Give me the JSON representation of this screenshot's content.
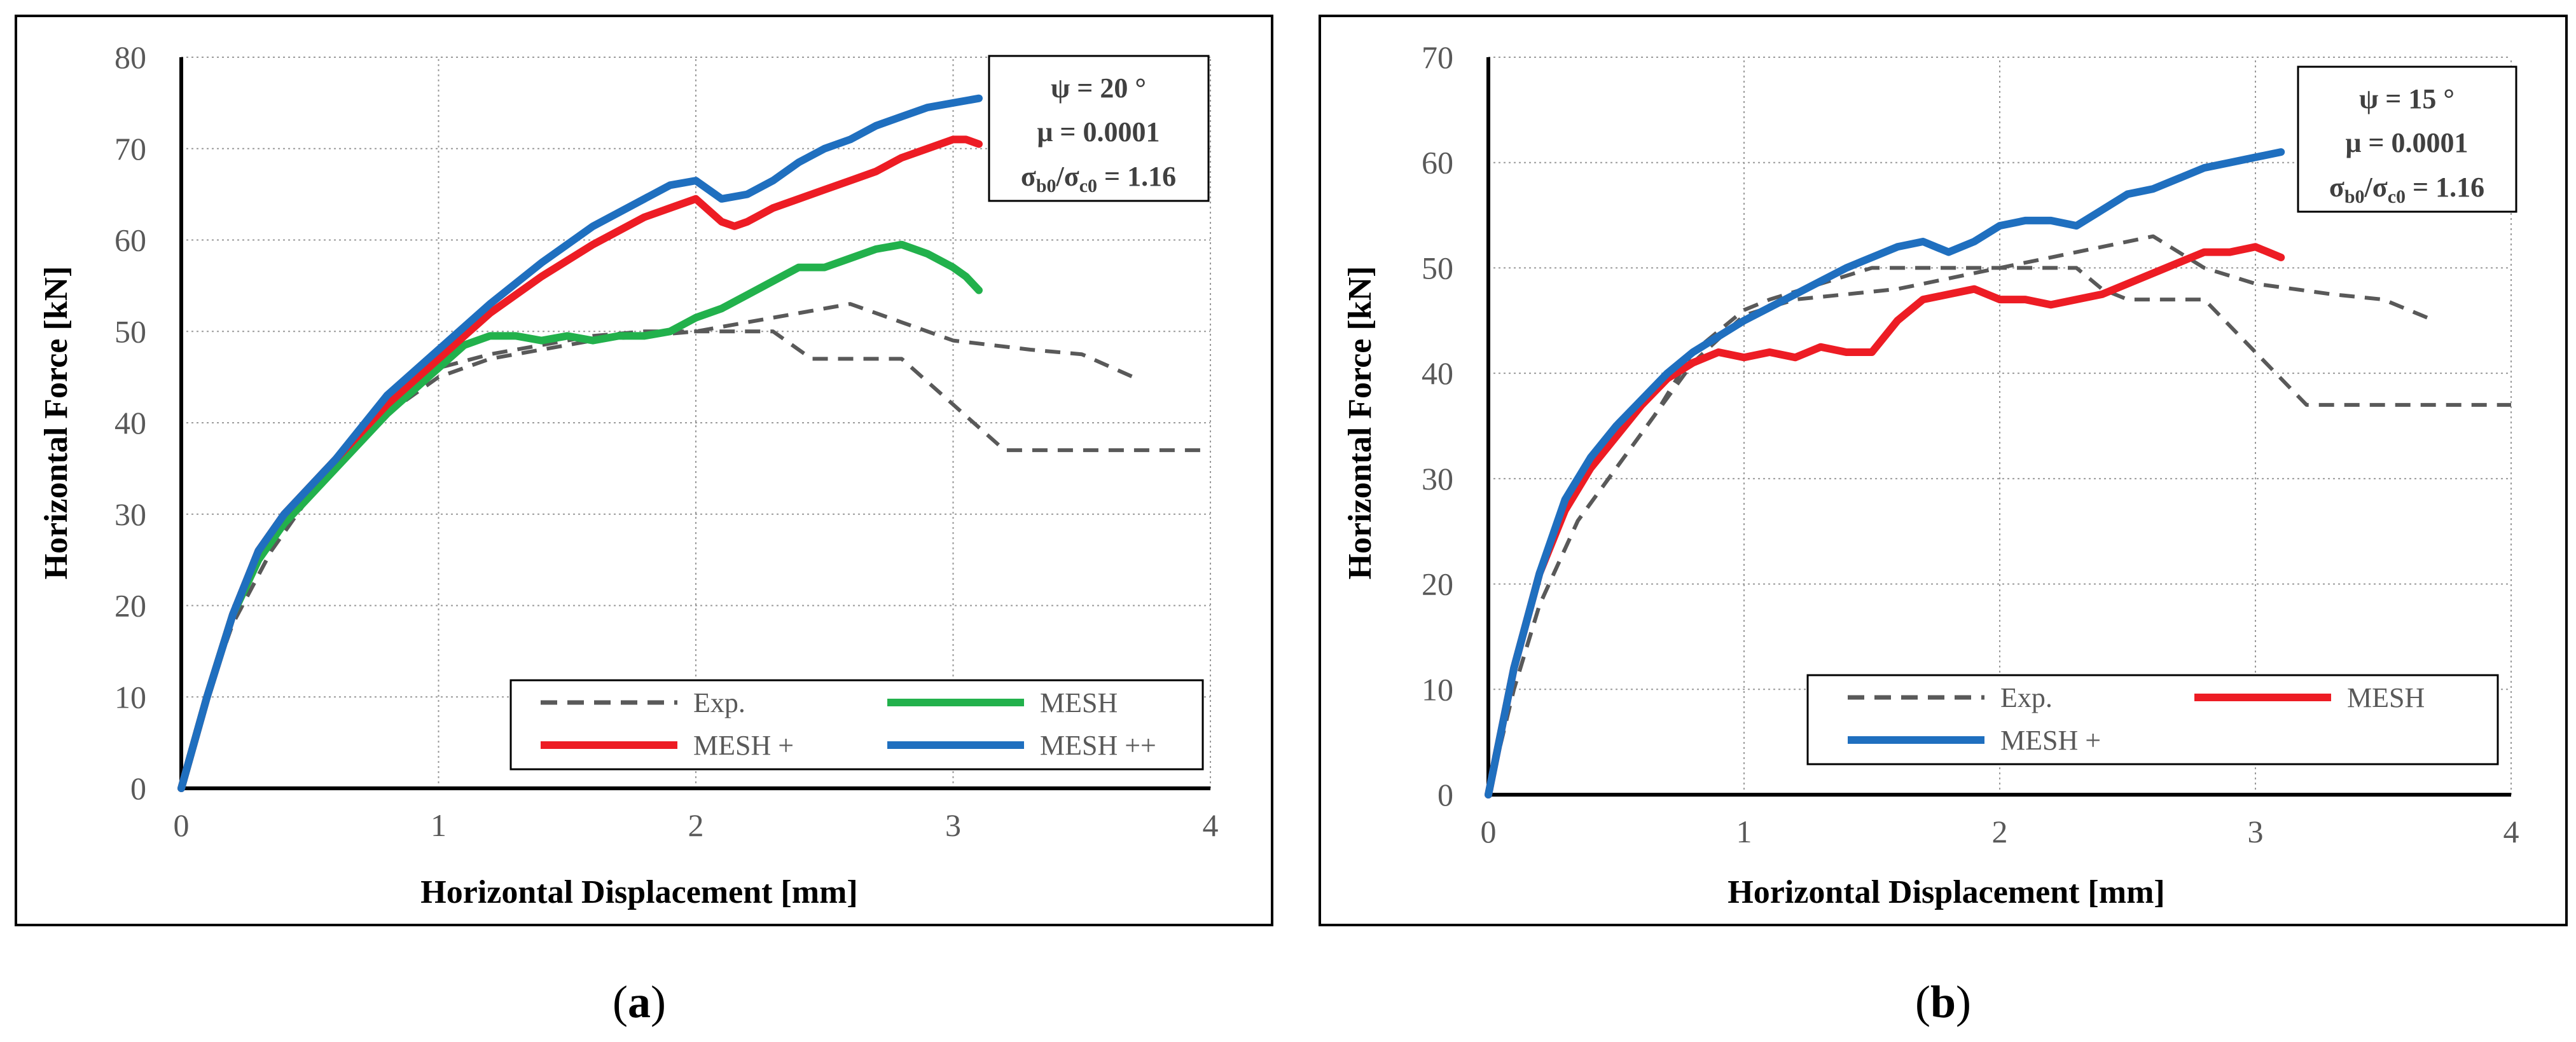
{
  "chart_data": [
    {
      "type": "line",
      "panel_label": "a",
      "xlabel": "Horizontal Displacement [mm]",
      "ylabel": "Horizontal Force [kN]",
      "xlim": [
        0,
        4
      ],
      "ylim": [
        0,
        80
      ],
      "xticks": [
        0,
        1,
        2,
        3,
        4
      ],
      "yticks": [
        0,
        10,
        20,
        30,
        40,
        50,
        60,
        70,
        80
      ],
      "grid": true,
      "annotation": {
        "psi": "ψ = 20 °",
        "mu": "μ = 0.0001",
        "sigma_num": "σ",
        "sigma_num_sub": "b0",
        "sigma_sep": "/σ",
        "sigma_den_sub": "c0",
        "sigma_val": " = 1.16"
      },
      "legend_position": "bottom-right",
      "series": [
        {
          "name": "Exp.",
          "color": "#595959",
          "style": "dashed",
          "x": [
            0,
            0.1,
            0.2,
            0.35,
            0.5,
            0.65,
            0.8,
            1.0,
            1.2,
            1.4,
            1.6,
            1.8,
            2.0,
            2.2,
            2.4,
            2.6,
            2.8,
            3.0,
            3.3,
            3.5,
            3.7
          ],
          "y": [
            0,
            10,
            18,
            26,
            32,
            37,
            41,
            45,
            47,
            48,
            49,
            49.5,
            50,
            51,
            52,
            53,
            51,
            49,
            48,
            47.5,
            45
          ]
        },
        {
          "name": "Exp.",
          "color": "#595959",
          "style": "dashed",
          "legend": false,
          "x": [
            0,
            0.1,
            0.2,
            0.35,
            0.5,
            0.65,
            0.8,
            1.0,
            1.2,
            1.4,
            1.6,
            1.8,
            2.0,
            2.2,
            2.3,
            2.45,
            2.6,
            2.8,
            3.0,
            3.2,
            4.0
          ],
          "y": [
            0,
            10,
            18,
            26,
            32,
            37,
            41,
            46,
            47.5,
            48.5,
            49.5,
            50,
            50,
            50,
            50,
            47,
            47,
            47,
            42,
            37,
            37
          ]
        },
        {
          "name": "MESH",
          "color": "#22B14C",
          "style": "solid",
          "x": [
            0,
            0.1,
            0.2,
            0.3,
            0.4,
            0.5,
            0.6,
            0.8,
            1.0,
            1.1,
            1.2,
            1.3,
            1.4,
            1.5,
            1.6,
            1.7,
            1.8,
            1.9,
            2.0,
            2.1,
            2.2,
            2.3,
            2.4,
            2.5,
            2.6,
            2.7,
            2.8,
            2.85,
            2.9,
            3.0,
            3.05,
            3.1
          ],
          "y": [
            0,
            10,
            19,
            25,
            29,
            32,
            35,
            41,
            46,
            48.5,
            49.5,
            49.5,
            49,
            49.5,
            49,
            49.5,
            49.5,
            50,
            51.5,
            52.5,
            54,
            55.5,
            57,
            57,
            58,
            59,
            59.5,
            59,
            58.5,
            57,
            56,
            54.5
          ]
        },
        {
          "name": "MESH +",
          "color": "#ED1C24",
          "style": "solid",
          "x": [
            0,
            0.1,
            0.2,
            0.3,
            0.4,
            0.5,
            0.6,
            0.8,
            1.0,
            1.2,
            1.4,
            1.6,
            1.8,
            1.9,
            2.0,
            2.1,
            2.15,
            2.2,
            2.3,
            2.4,
            2.5,
            2.6,
            2.7,
            2.8,
            2.9,
            3.0,
            3.05,
            3.1
          ],
          "y": [
            0,
            10,
            19,
            26,
            30,
            33,
            36,
            42,
            47,
            52,
            56,
            59.5,
            62.5,
            63.5,
            64.5,
            62,
            61.5,
            62,
            63.5,
            64.5,
            65.5,
            66.5,
            67.5,
            69,
            70,
            71,
            71,
            70.5
          ]
        },
        {
          "name": "MESH ++",
          "color": "#1F6FBF",
          "style": "solid",
          "x": [
            0,
            0.1,
            0.2,
            0.3,
            0.4,
            0.5,
            0.6,
            0.8,
            1.0,
            1.2,
            1.4,
            1.6,
            1.8,
            1.9,
            2.0,
            2.1,
            2.2,
            2.3,
            2.4,
            2.5,
            2.6,
            2.7,
            2.8,
            2.9,
            3.0,
            3.1
          ],
          "y": [
            0,
            10,
            19,
            26,
            30,
            33,
            36,
            43,
            48,
            53,
            57.5,
            61.5,
            64.5,
            66,
            66.5,
            64.5,
            65,
            66.5,
            68.5,
            70,
            71,
            72.5,
            73.5,
            74.5,
            75,
            75.5
          ]
        }
      ]
    },
    {
      "type": "line",
      "panel_label": "b",
      "xlabel": "Horizontal Displacement [mm]",
      "ylabel": "Horizontal Force [kN]",
      "xlim": [
        0,
        4
      ],
      "ylim": [
        0,
        70
      ],
      "xticks": [
        0,
        1,
        2,
        3,
        4
      ],
      "yticks": [
        0,
        10,
        20,
        30,
        40,
        50,
        60,
        70
      ],
      "grid": true,
      "annotation": {
        "psi": "ψ = 15 °",
        "mu": "μ = 0.0001",
        "sigma_num": "σ",
        "sigma_num_sub": "b0",
        "sigma_sep": "/σ",
        "sigma_den_sub": "c0",
        "sigma_val": " = 1.16"
      },
      "legend_position": "bottom-right",
      "series": [
        {
          "name": "Exp.",
          "color": "#595959",
          "style": "dashed",
          "x": [
            0,
            0.1,
            0.2,
            0.35,
            0.5,
            0.65,
            0.8,
            1.0,
            1.2,
            1.4,
            1.6,
            1.8,
            2.0,
            2.2,
            2.4,
            2.6,
            2.8,
            3.0,
            3.3,
            3.5,
            3.7
          ],
          "y": [
            0,
            10,
            18,
            26,
            31,
            36,
            41,
            45.5,
            47,
            47.5,
            48,
            49,
            50,
            51,
            52,
            53,
            50,
            48.5,
            47.5,
            47,
            45
          ]
        },
        {
          "name": "Exp.",
          "color": "#595959",
          "style": "dashed",
          "legend": false,
          "x": [
            0,
            0.1,
            0.2,
            0.35,
            0.5,
            0.65,
            0.8,
            1.0,
            1.1,
            1.3,
            1.5,
            1.7,
            1.9,
            2.1,
            2.3,
            2.4,
            2.5,
            2.6,
            2.8,
            3.0,
            3.2,
            4.0
          ],
          "y": [
            0,
            10,
            18,
            26,
            31,
            36,
            42,
            46,
            47,
            48.5,
            50,
            50,
            50,
            50,
            50,
            48,
            47,
            47,
            47,
            42,
            37,
            37
          ]
        },
        {
          "name": "MESH",
          "color": "#ED1C24",
          "style": "solid",
          "x": [
            0,
            0.1,
            0.2,
            0.3,
            0.4,
            0.5,
            0.6,
            0.7,
            0.8,
            0.9,
            1.0,
            1.1,
            1.2,
            1.3,
            1.4,
            1.5,
            1.6,
            1.7,
            1.8,
            1.9,
            2.0,
            2.1,
            2.2,
            2.3,
            2.4,
            2.5,
            2.6,
            2.7,
            2.8,
            2.9,
            3.0,
            3.05,
            3.1
          ],
          "y": [
            0,
            12,
            21,
            27,
            31,
            34,
            37,
            39.5,
            41,
            42,
            41.5,
            42,
            41.5,
            42.5,
            42,
            42,
            45,
            47,
            47.5,
            48,
            47,
            47,
            46.5,
            47,
            47.5,
            48.5,
            49.5,
            50.5,
            51.5,
            51.5,
            52,
            51.5,
            51
          ]
        },
        {
          "name": "MESH +",
          "color": "#1F6FBF",
          "style": "solid",
          "x": [
            0,
            0.1,
            0.2,
            0.3,
            0.4,
            0.5,
            0.6,
            0.7,
            0.8,
            0.9,
            1.0,
            1.2,
            1.4,
            1.6,
            1.7,
            1.8,
            1.9,
            2.0,
            2.1,
            2.2,
            2.3,
            2.4,
            2.5,
            2.6,
            2.7,
            2.8,
            2.9,
            3.0,
            3.1
          ],
          "y": [
            0,
            12,
            21,
            28,
            32,
            35,
            37.5,
            40,
            42,
            43.5,
            45,
            47.5,
            50,
            52,
            52.5,
            51.5,
            52.5,
            54,
            54.5,
            54.5,
            54,
            55.5,
            57,
            57.5,
            58.5,
            59.5,
            60,
            60.5,
            61
          ]
        }
      ]
    }
  ]
}
